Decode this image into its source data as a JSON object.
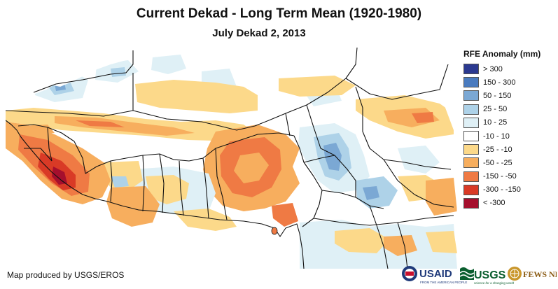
{
  "title": "Current Dekad - Long Term Mean (1920-1980)",
  "subtitle": "July Dekad 2, 2013",
  "legend": {
    "title": "RFE Anomaly (mm)",
    "items": [
      {
        "label": "> 300",
        "color": "#2b3990"
      },
      {
        "label": "150 - 300",
        "color": "#4a7bbf"
      },
      {
        "label": "50 - 150",
        "color": "#7ba8d4"
      },
      {
        "label": "25 - 50",
        "color": "#aed2e8"
      },
      {
        "label": "10 - 25",
        "color": "#dff0f6"
      },
      {
        "label": "-10 - 10",
        "color": "#ffffff"
      },
      {
        "label": "-25 - -10",
        "color": "#fcd98a"
      },
      {
        "label": "-50 - -25",
        "color": "#f7ae5e"
      },
      {
        "label": "-150 - -50",
        "color": "#ef7a44"
      },
      {
        "label": "-300 - -150",
        "color": "#d93a26"
      },
      {
        "label": "< -300",
        "color": "#a50f2d"
      }
    ]
  },
  "credit": "Map produced by USGS/EROS",
  "logos": {
    "usaid": "USAID",
    "usaid_tagline": "FROM THE AMERICAN PEOPLE",
    "usgs": "USGS",
    "usgs_tagline": "science for a changing world",
    "fewsnet": "FEWS NET"
  }
}
